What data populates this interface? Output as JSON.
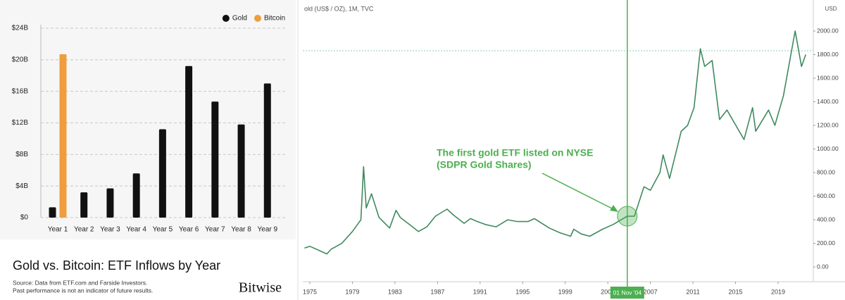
{
  "chart_data": [
    {
      "type": "bar",
      "title": "Gold vs. Bitcoin: ETF Inflows by Year",
      "footnote_lines": [
        "Source: Data from ETF.com and Farside Investors.",
        "Past performance is not an indicator of future results."
      ],
      "brand": "Bitwise",
      "categories": [
        "Year 1",
        "Year 2",
        "Year 3",
        "Year 4",
        "Year 5",
        "Year 6",
        "Year 7",
        "Year 8",
        "Year 9"
      ],
      "series": [
        {
          "name": "Gold",
          "color": "#111111",
          "values": [
            1.3,
            3.2,
            3.7,
            5.6,
            11.2,
            19.2,
            14.7,
            11.8,
            17.0
          ]
        },
        {
          "name": "Bitcoin",
          "color": "#ef9d3e",
          "values": [
            20.7,
            null,
            null,
            null,
            null,
            null,
            null,
            null,
            null
          ]
        }
      ],
      "ylim": [
        0,
        24
      ],
      "yticks": [
        {
          "value": 0,
          "label": "$0"
        },
        {
          "value": 4,
          "label": "$4B"
        },
        {
          "value": 8,
          "label": "$8B"
        },
        {
          "value": 12,
          "label": "$12B"
        },
        {
          "value": 16,
          "label": "$16B"
        },
        {
          "value": 20,
          "label": "$20B"
        },
        {
          "value": 24,
          "label": "$24B"
        }
      ],
      "grid": true,
      "legend": "top-right"
    },
    {
      "type": "line",
      "title": "old (US$ / OZ), 1M, TVC",
      "y_unit": "USD",
      "color": "#3f8a5f",
      "x": [
        1974.5,
        1975,
        1976.6,
        1977,
        1978,
        1979,
        1979.8,
        1980.05,
        1980.3,
        1980.8,
        1981.5,
        1982.5,
        1983.1,
        1983.5,
        1984.5,
        1985.2,
        1986,
        1986.8,
        1987.9,
        1988.5,
        1989.5,
        1990.1,
        1990.6,
        1991.5,
        1992.5,
        1993.6,
        1994.5,
        1995.5,
        1996.1,
        1997.5,
        1998.5,
        1999.5,
        1999.8,
        2000.5,
        2001.3,
        2002.5,
        2003.5,
        2004.83,
        2005.5,
        2006.4,
        2007,
        2007.9,
        2008.2,
        2008.8,
        2009.9,
        2010.5,
        2011.1,
        2011.7,
        2012.1,
        2012.8,
        2013.5,
        2014.2,
        2015.8,
        2016.6,
        2016.9,
        2018.1,
        2018.7,
        2019.5,
        2020.6,
        2021.2,
        2021.6
      ],
      "values": [
        160,
        175,
        110,
        150,
        200,
        300,
        400,
        850,
        500,
        620,
        420,
        330,
        480,
        420,
        350,
        300,
        340,
        430,
        490,
        440,
        370,
        410,
        390,
        360,
        340,
        400,
        385,
        385,
        410,
        330,
        290,
        260,
        320,
        280,
        260,
        320,
        360,
        430,
        430,
        680,
        650,
        800,
        950,
        750,
        1150,
        1200,
        1350,
        1850,
        1700,
        1750,
        1250,
        1330,
        1080,
        1350,
        1150,
        1330,
        1200,
        1450,
        2000,
        1700,
        1800
      ],
      "xlim": [
        1974.34,
        2022.31
      ],
      "xticks": [
        1975,
        1979,
        1983,
        1987,
        1991,
        1995,
        1999,
        2003,
        2007,
        2011,
        2015,
        2019
      ],
      "ylim": [
        -125,
        2233
      ],
      "yticks": [
        {
          "value": 0,
          "label": "0.00"
        },
        {
          "value": 200,
          "label": "200.00"
        },
        {
          "value": 400,
          "label": "400.00"
        },
        {
          "value": 600,
          "label": "600.00"
        },
        {
          "value": 800,
          "label": "800.00"
        },
        {
          "value": 1000,
          "label": "1000.00"
        },
        {
          "value": 1200,
          "label": "1200.00"
        },
        {
          "value": 1400,
          "label": "1400.00"
        },
        {
          "value": 1600,
          "label": "1600.00"
        },
        {
          "value": 1800,
          "label": "1800.00"
        },
        {
          "value": 2000,
          "label": "2000.00"
        }
      ],
      "annotations": [
        "The first gold ETF listed on NYSE",
        "(SDPR Gold Shares)"
      ],
      "marker_x": 2004.83,
      "marker_label": "01 Nov '04",
      "reference_y": 1833
    }
  ]
}
